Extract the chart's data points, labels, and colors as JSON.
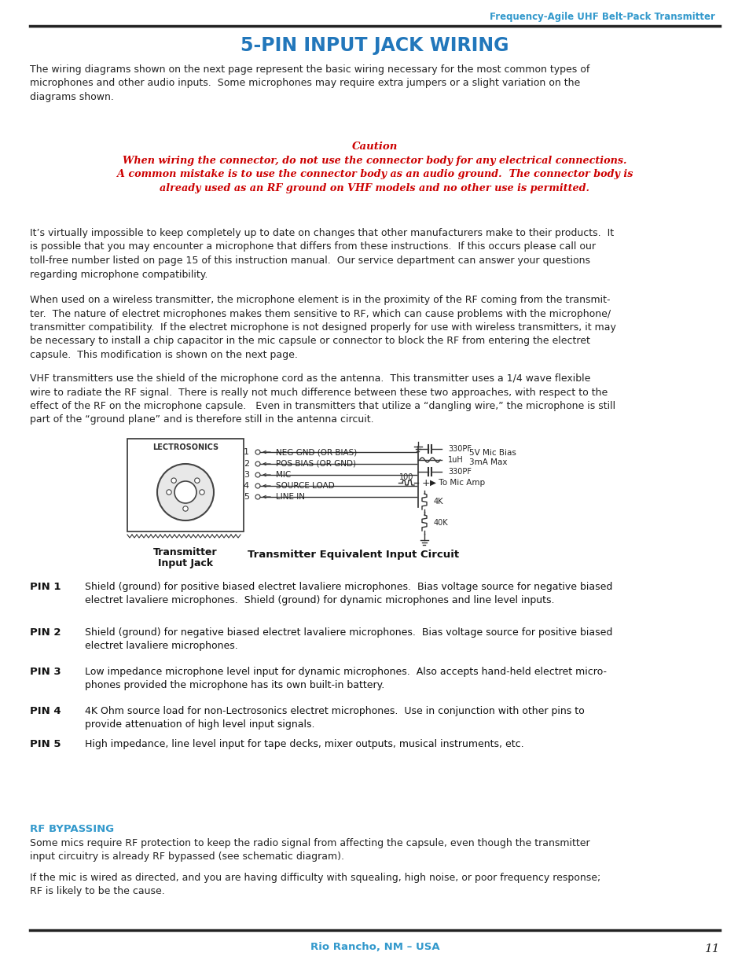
{
  "header_text": "Frequency-Agile UHF Belt-Pack Transmitter",
  "header_color": "#3399cc",
  "title": "5-PIN INPUT JACK WIRING",
  "title_color": "#2277bb",
  "body_color": "#222222",
  "red_color": "#cc0000",
  "blue_color": "#3399cc",
  "footer_text": "Rio Rancho, NM – USA",
  "page_number": "11",
  "para1": "The wiring diagrams shown on the next page represent the basic wiring necessary for the most common types of\nmicrophones and other audio inputs.  Some microphones may require extra jumpers or a slight variation on the\ndiagrams shown.",
  "caution_title": "Caution",
  "caution_body": "When wiring the connector, do not use the connector body for any electrical connections.\nA common mistake is to use the connector body as an audio ground.  The connector body is\nalready used as an RF ground on VHF models and no other use is permitted.",
  "para2": "It’s virtually impossible to keep completely up to date on changes that other manufacturers make to their products.  It\nis possible that you may encounter a microphone that differs from these instructions.  If this occurs please call our\ntoll-free number listed on page 15 of this instruction manual.  Our service department can answer your questions\nregarding microphone compatibility.",
  "para3": "When used on a wireless transmitter, the microphone element is in the proximity of the RF coming from the transmit-\nter.  The nature of electret microphones makes them sensitive to RF, which can cause problems with the microphone/\ntransmitter compatibility.  If the electret microphone is not designed properly for use with wireless transmitters, it may\nbe necessary to install a chip capacitor in the mic capsule or connector to block the RF from entering the electret\ncapsule.  This modification is shown on the next page.",
  "para4": "VHF transmitters use the shield of the microphone cord as the antenna.  This transmitter uses a 1/4 wave flexible\nwire to radiate the RF signal.  There is really not much difference between these two approaches, with respect to the\neffect of the RF on the microphone capsule.   Even in transmitters that utilize a “dangling wire,” the microphone is still\npart of the “ground plane” and is therefore still in the antenna circuit.",
  "pin_entries": [
    {
      "pin": "PIN 1",
      "text": "Shield (ground) for positive biased electret lavaliere microphones.  Bias voltage source for negative biased\nelectret lavaliere microphones.  Shield (ground) for dynamic microphones and line level inputs."
    },
    {
      "pin": "PIN 2",
      "text": "Shield (ground) for negative biased electret lavaliere microphones.  Bias voltage source for positive biased\nelectret lavaliere microphones."
    },
    {
      "pin": "PIN 3",
      "text": "Low impedance microphone level input for dynamic microphones.  Also accepts hand-held electret micro-\nphones provided the microphone has its own built-in battery."
    },
    {
      "pin": "PIN 4",
      "text": "4K Ohm source load for non-Lectrosonics electret microphones.  Use in conjunction with other pins to\nprovide attenuation of high level input signals."
    },
    {
      "pin": "PIN 5",
      "text": "High impedance, line level input for tape decks, mixer outputs, musical instruments, etc."
    }
  ],
  "rf_bypass_title": "RF BYPASSING",
  "rf_bypass_para1": "Some mics require RF protection to keep the radio signal from affecting the capsule, even though the transmitter\ninput circuitry is already RF bypassed (see schematic diagram).",
  "rf_bypass_para2": "If the mic is wired as directed, and you are having difficulty with squealing, high noise, or poor frequency response;\nRF is likely to be the cause."
}
